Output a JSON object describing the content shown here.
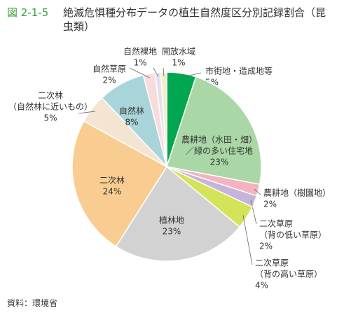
{
  "figure_label": "図 2-1-5",
  "source": "資料：環境省",
  "chart_data": {
    "type": "pie",
    "title": "絶滅危惧種分布データの植生自然度区分別記録割合（昆虫類）",
    "categories": [
      [
        "市街地・造成地等"
      ],
      [
        "農耕地（水田・畑）",
        "／緑の多い住宅地"
      ],
      [
        "農耕地（樹園地）"
      ],
      [
        "二次草原",
        "（背の低い草原）"
      ],
      [
        "二次草原",
        "（背の高い草原）"
      ],
      [
        "植林地"
      ],
      [
        "二次林"
      ],
      [
        "二次林",
        "（自然林に近いもの）"
      ],
      [
        "自然林"
      ],
      [
        "自然草原"
      ],
      [
        "自然裸地"
      ],
      [
        "開放水域"
      ]
    ],
    "values": [
      5,
      23,
      2,
      2,
      4,
      23,
      24,
      5,
      8,
      2,
      1,
      1
    ],
    "value_labels": [
      "5%",
      "23%",
      "2%",
      "2%",
      "4%",
      "23%",
      "24%",
      "5%",
      "8%",
      "2%",
      "1%",
      "1%"
    ],
    "colors": [
      "#00a650",
      "#a9d7a6",
      "#f4b3bf",
      "#c6b4d9",
      "#d3e35a",
      "#d2d2d2",
      "#f9cd91",
      "#f3e5d1",
      "#a9d4da",
      "#f8dcdc",
      "#e6dff0",
      "#f1f0c4"
    ]
  }
}
